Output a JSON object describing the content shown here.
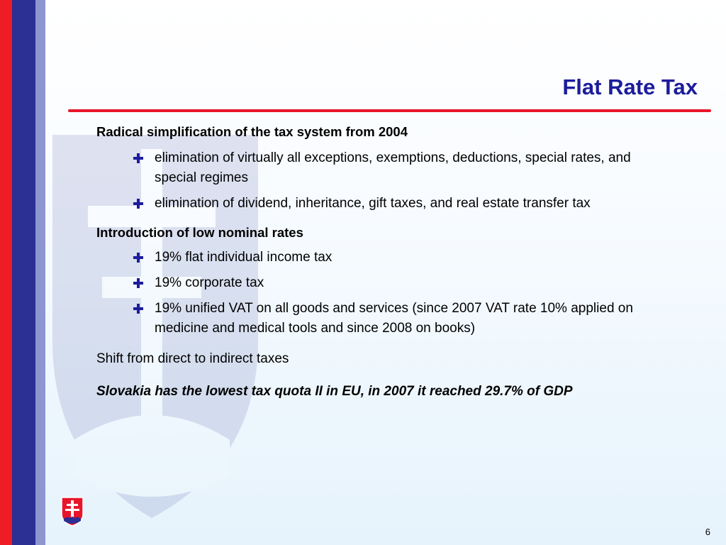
{
  "slide": {
    "title": "Flat Rate Tax",
    "page_number": "6",
    "colors": {
      "title": "#1c1c9c",
      "rule": "#e8162a",
      "stripe_red": "#ee1c25",
      "stripe_blue": "#2c2f93",
      "stripe_lightblue": "#8d96cf",
      "bullet": "#1c1c9c"
    },
    "icons": {
      "bullet": "cross-icon",
      "emblem": "slovak-coat-of-arms-icon"
    }
  },
  "sections": [
    {
      "heading": "Radical simplification of the tax system from 2004",
      "bullets": [
        "elimination of virtually all exceptions, exemptions, deductions, special rates, and special regimes",
        "elimination of dividend, inheritance, gift taxes, and real estate transfer tax"
      ]
    },
    {
      "heading": "Introduction of low nominal rates",
      "bullets": [
        "19% flat individual income tax",
        "19% corporate tax",
        "19% unified VAT on all goods and services (since 2007 VAT rate 10% applied on medicine and medical tools and since 2008 on books)"
      ]
    }
  ],
  "shift_text": "Shift from direct to indirect taxes",
  "conclusion": "Slovakia has the lowest tax quota II in EU, in 2007 it reached 29.7% of GDP"
}
